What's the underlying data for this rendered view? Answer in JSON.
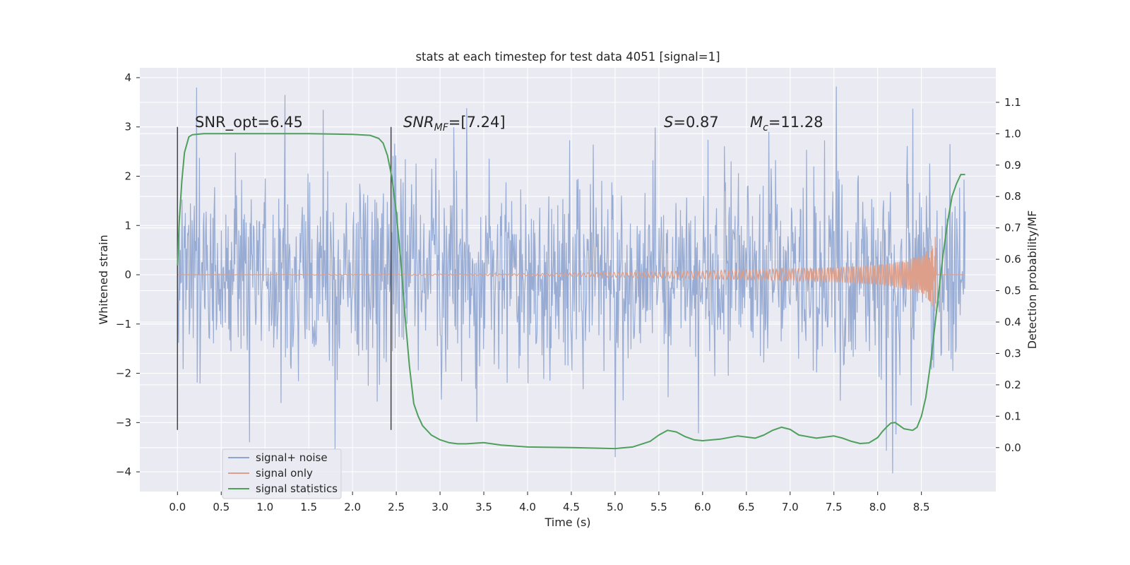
{
  "chart_data": {
    "type": "line",
    "title": "stats at each timestep for test data 4051 [signal=1]",
    "xlabel": "Time (s)",
    "ylabel": "Whitened strain",
    "y2label": "Detection probability/MF",
    "xlim": [
      -0.43,
      9.35
    ],
    "ylim": [
      -4.4,
      4.2
    ],
    "y2lim": [
      -0.14,
      1.21
    ],
    "grid": true,
    "legend_position": "lower-left",
    "x_ticks": [
      0.0,
      0.5,
      1.0,
      1.5,
      2.0,
      2.5,
      3.0,
      3.5,
      4.0,
      4.5,
      5.0,
      5.5,
      6.0,
      6.5,
      7.0,
      7.5,
      8.0,
      8.5
    ],
    "x_tick_labels": [
      "0.0",
      "0.5",
      "1.0",
      "1.5",
      "2.0",
      "2.5",
      "3.0",
      "3.5",
      "4.0",
      "4.5",
      "5.0",
      "5.5",
      "6.0",
      "6.5",
      "7.0",
      "7.5",
      "8.0",
      "8.5"
    ],
    "y_ticks": [
      4,
      3,
      2,
      1,
      0,
      -1,
      -2,
      -3,
      -4
    ],
    "y_tick_labels": [
      "4",
      "3",
      "2",
      "1",
      "0",
      "−1",
      "−2",
      "−3",
      "−4"
    ],
    "y2_ticks": [
      1.1,
      1.0,
      0.9,
      0.8,
      0.7,
      0.6,
      0.5,
      0.4,
      0.3,
      0.2,
      0.1,
      0.0
    ],
    "y2_tick_labels": [
      "1.1",
      "1.0",
      "0.9",
      "0.8",
      "0.7",
      "0.6",
      "0.5",
      "0.4",
      "0.3",
      "0.2",
      "0.1",
      "0.0"
    ],
    "series": [
      {
        "name": "signal+ noise",
        "color": "#8ea4cf",
        "x_range": [
          0.0,
          9.0
        ],
        "typical_amplitude": 1.0,
        "notable_extremes": [
          {
            "x": 0.22,
            "y": 3.8
          },
          {
            "x": 1.23,
            "y": 3.65
          },
          {
            "x": 7.53,
            "y": 3.82
          },
          {
            "x": 8.4,
            "y": 3.37
          },
          {
            "x": 5.0,
            "y": -3.7
          },
          {
            "x": 8.17,
            "y": -4.03
          },
          {
            "x": 8.1,
            "y": -3.57
          },
          {
            "x": 1.8,
            "y": -3.55
          },
          {
            "x": 0.82,
            "y": -3.4
          }
        ]
      },
      {
        "name": "signal only",
        "color": "#dd9f8a",
        "x_range": [
          0.0,
          9.0
        ],
        "envelope": [
          {
            "x": 0.0,
            "y": 0.0
          },
          {
            "x": 4.0,
            "y": 0.02
          },
          {
            "x": 5.0,
            "y": 0.05
          },
          {
            "x": 6.0,
            "y": 0.08
          },
          {
            "x": 7.0,
            "y": 0.12
          },
          {
            "x": 7.5,
            "y": 0.15
          },
          {
            "x": 8.0,
            "y": 0.2
          },
          {
            "x": 8.3,
            "y": 0.28
          },
          {
            "x": 8.5,
            "y": 0.4
          },
          {
            "x": 8.6,
            "y": 0.55
          },
          {
            "x": 8.65,
            "y": 0.75
          },
          {
            "x": 8.67,
            "y": 1.1
          }
        ],
        "merger_x": 8.67
      },
      {
        "name": "signal statistics",
        "color": "#4ea05c",
        "axis": "right",
        "x": [
          0.0,
          0.02,
          0.05,
          0.08,
          0.1,
          0.13,
          0.17,
          0.3,
          0.6,
          1.0,
          1.5,
          2.0,
          2.2,
          2.3,
          2.35,
          2.4,
          2.45,
          2.5,
          2.55,
          2.6,
          2.65,
          2.7,
          2.75,
          2.8,
          2.9,
          3.0,
          3.1,
          3.2,
          3.3,
          3.5,
          3.7,
          4.0,
          4.5,
          5.0,
          5.2,
          5.4,
          5.5,
          5.6,
          5.7,
          5.8,
          5.9,
          6.0,
          6.2,
          6.4,
          6.6,
          6.7,
          6.8,
          6.9,
          7.0,
          7.1,
          7.3,
          7.5,
          7.6,
          7.7,
          7.8,
          7.9,
          8.0,
          8.05,
          8.1,
          8.15,
          8.2,
          8.3,
          8.4,
          8.45,
          8.5,
          8.55,
          8.6,
          8.65,
          8.7,
          8.75,
          8.8,
          8.85,
          8.9,
          8.95,
          9.0
        ],
        "y": [
          0.58,
          0.72,
          0.85,
          0.94,
          0.96,
          0.99,
          0.997,
          1.0,
          1.0,
          1.0,
          1.0,
          0.998,
          0.995,
          0.985,
          0.97,
          0.93,
          0.86,
          0.75,
          0.6,
          0.42,
          0.26,
          0.14,
          0.1,
          0.07,
          0.04,
          0.025,
          0.016,
          0.012,
          0.012,
          0.016,
          0.008,
          0.002,
          0.0,
          -0.003,
          0.002,
          0.02,
          0.04,
          0.055,
          0.05,
          0.035,
          0.025,
          0.022,
          0.027,
          0.037,
          0.03,
          0.04,
          0.055,
          0.065,
          0.058,
          0.04,
          0.03,
          0.037,
          0.03,
          0.02,
          0.013,
          0.015,
          0.032,
          0.05,
          0.065,
          0.078,
          0.08,
          0.06,
          0.055,
          0.065,
          0.1,
          0.16,
          0.26,
          0.38,
          0.5,
          0.62,
          0.72,
          0.8,
          0.84,
          0.87,
          0.87
        ]
      }
    ],
    "vertical_markers": [
      {
        "x": 0.0,
        "y_range": [
          -3.15,
          3.0
        ],
        "color": "#444444"
      },
      {
        "x": 2.44,
        "y_range": [
          -3.15,
          3.0
        ],
        "color": "#444444"
      }
    ],
    "annotations": {
      "snr_opt": "SNR_opt=6.45",
      "snr_mf_base": "SNR",
      "snr_mf_sub": "MF",
      "snr_mf_rest": "=[7.24]",
      "s_base": "S",
      "s_rest": "=0.87",
      "mc_base": "M",
      "mc_sub": "c",
      "mc_rest": "=11.28"
    },
    "legend": [
      "signal+ noise",
      "signal only",
      "signal statistics"
    ],
    "colors": {
      "axes_bg": "#eaeaf2",
      "grid": "#ffffff",
      "text": "#262626"
    }
  }
}
